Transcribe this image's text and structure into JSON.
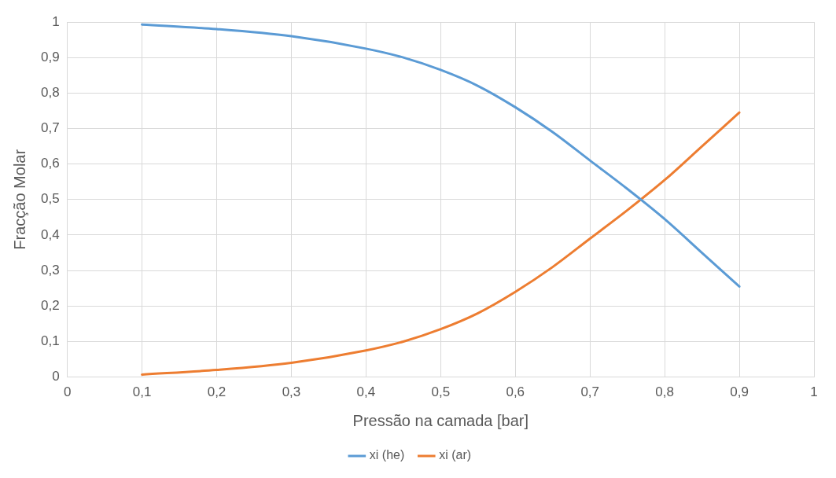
{
  "chart_data": {
    "type": "line",
    "xlabel": "Pressão na camada [bar]",
    "ylabel": "Fracção Molar",
    "x": [
      0.1,
      0.2,
      0.3,
      0.4,
      0.45,
      0.5,
      0.55,
      0.6,
      0.65,
      0.7,
      0.75,
      0.8,
      0.85,
      0.9
    ],
    "series": [
      {
        "name": "xi (he)",
        "color": "#5b9bd5",
        "values": [
          0.993,
          0.98,
          0.96,
          0.925,
          0.9,
          0.865,
          0.82,
          0.76,
          0.69,
          0.61,
          0.53,
          0.445,
          0.35,
          0.255
        ]
      },
      {
        "name": "xi (ar)",
        "color": "#ed7d31",
        "values": [
          0.007,
          0.02,
          0.04,
          0.075,
          0.1,
          0.135,
          0.18,
          0.24,
          0.31,
          0.39,
          0.47,
          0.555,
          0.65,
          0.745
        ]
      }
    ],
    "xlim": [
      0,
      1
    ],
    "xticks": [
      0,
      {
        "value": 0.1,
        "label": "0,1"
      },
      {
        "value": 0.2,
        "label": "0,2"
      },
      {
        "value": 0.3,
        "label": "0,3"
      },
      {
        "value": 0.4,
        "label": "0,4"
      },
      {
        "value": 0.5,
        "label": "0,5"
      },
      {
        "value": 0.6,
        "label": "0,6"
      },
      {
        "value": 0.7,
        "label": "0,7"
      },
      {
        "value": 0.8,
        "label": "0,8"
      },
      {
        "value": 0.9,
        "label": "0,9"
      },
      1
    ],
    "ylim": [
      0,
      1
    ],
    "yticks": [
      0,
      {
        "value": 0.1,
        "label": "0,1"
      },
      {
        "value": 0.2,
        "label": "0,2"
      },
      {
        "value": 0.3,
        "label": "0,3"
      },
      {
        "value": 0.4,
        "label": "0,4"
      },
      {
        "value": 0.5,
        "label": "0,5"
      },
      {
        "value": 0.6,
        "label": "0,6"
      },
      {
        "value": 0.7,
        "label": "0,7"
      },
      {
        "value": 0.8,
        "label": "0,8"
      },
      {
        "value": 0.9,
        "label": "0,9"
      },
      1
    ],
    "grid": true,
    "legend": "bottom",
    "marker": "none",
    "line_style": "solid"
  }
}
